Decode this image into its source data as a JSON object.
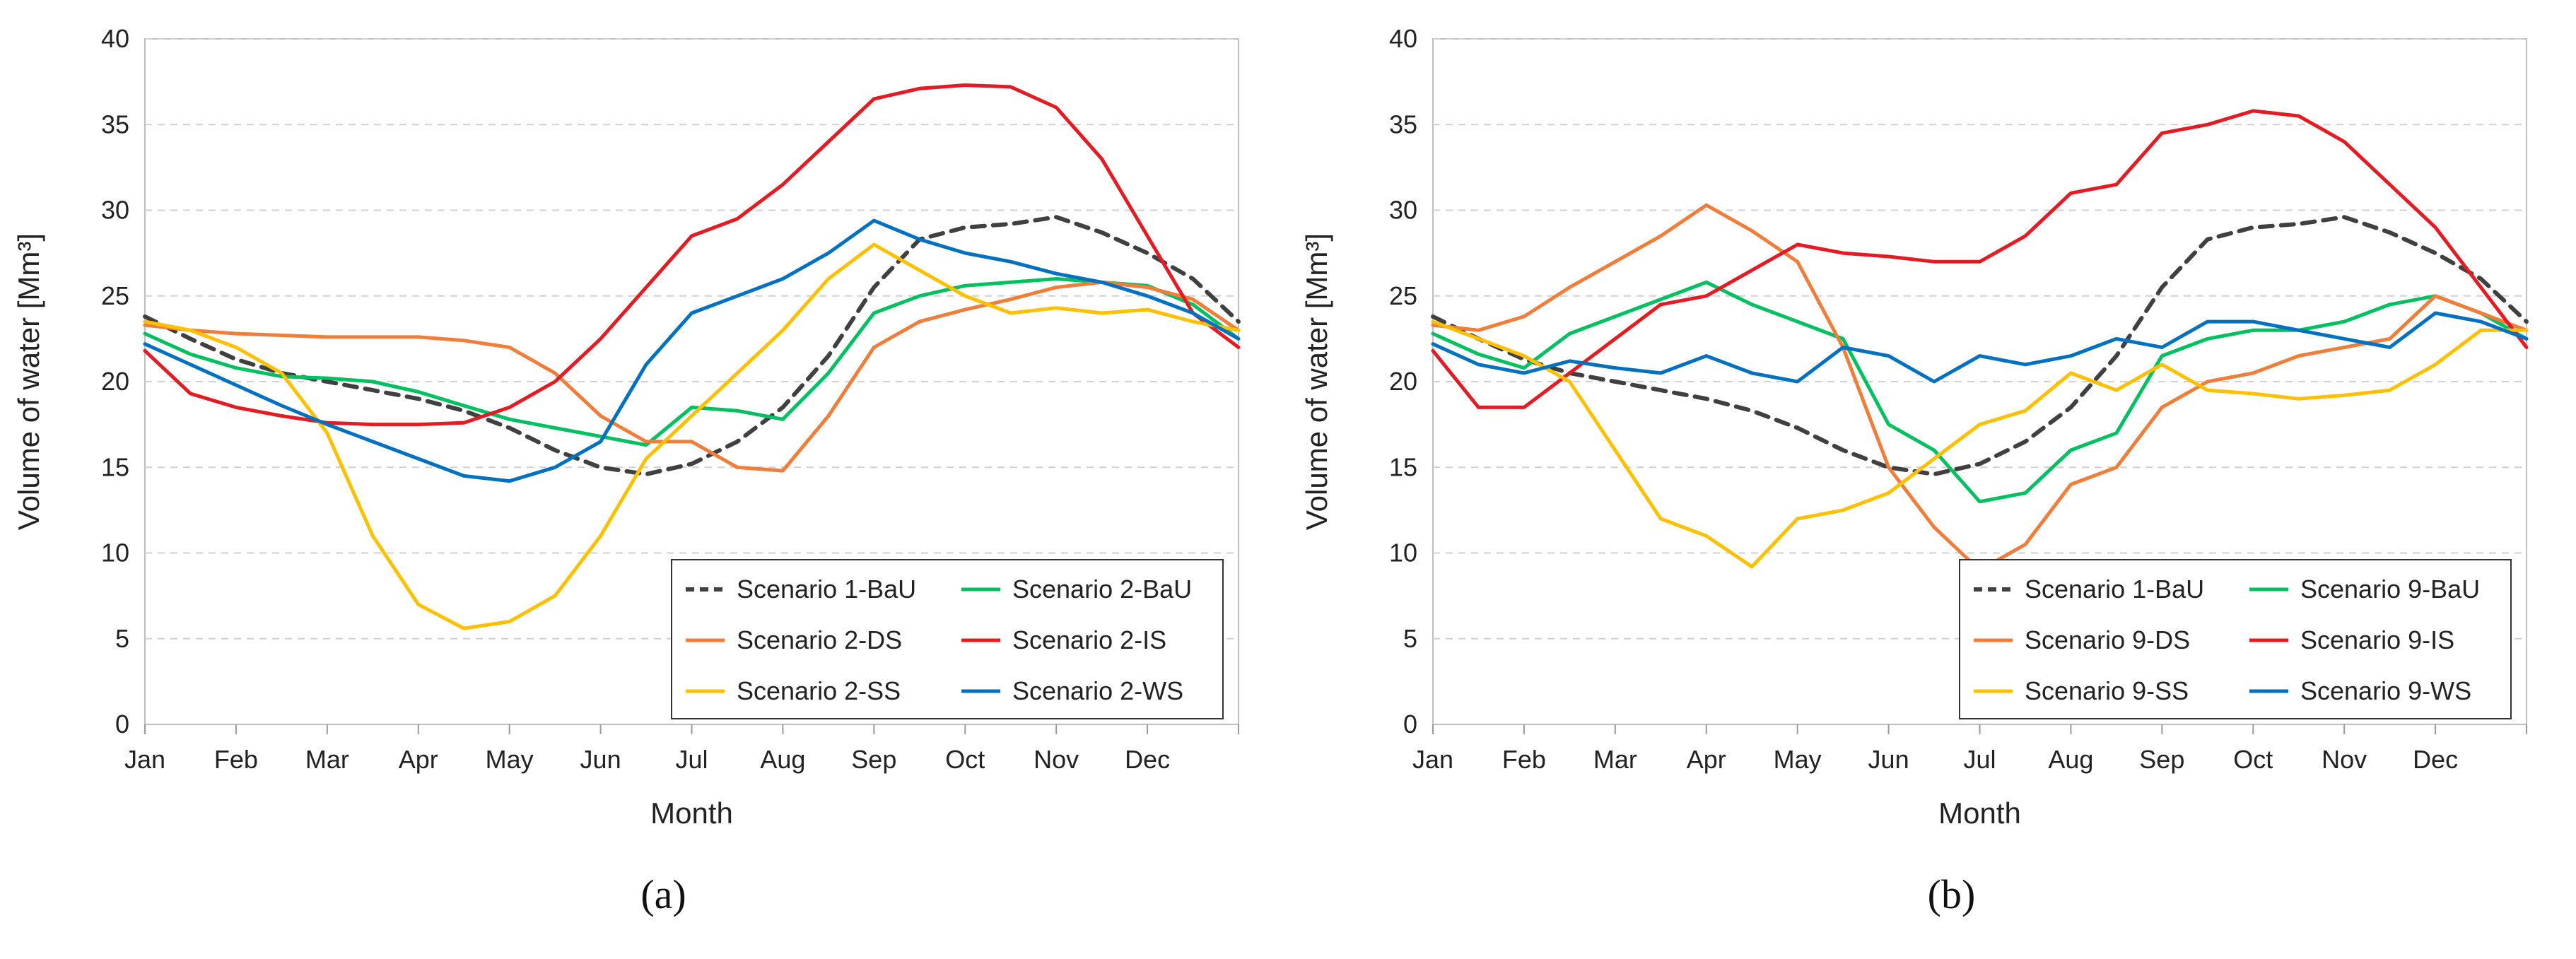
{
  "chart_data": [
    {
      "type": "line",
      "caption_letter": "a",
      "xlabel": "Month",
      "ylabel": "Volume of water [Mm³]",
      "ylim": [
        0,
        40
      ],
      "yticks": [
        0,
        5,
        10,
        15,
        20,
        25,
        30,
        35,
        40
      ],
      "xlim": [
        0,
        12
      ],
      "months": [
        "Jan",
        "Feb",
        "Mar",
        "Apr",
        "May",
        "Jun",
        "Jul",
        "Aug",
        "Sep",
        "Oct",
        "Nov",
        "Dec"
      ],
      "grid": "horizontal dashed",
      "legend_position": "bottom-right",
      "series": [
        {
          "name": "Scenario 1-BaU",
          "color": "#404040",
          "dash": true,
          "x": [
            0,
            0.5,
            1,
            1.5,
            2,
            2.5,
            3,
            3.5,
            4,
            4.5,
            5,
            5.5,
            6,
            6.5,
            7,
            7.5,
            8,
            8.5,
            9,
            9.5,
            10,
            10.5,
            11,
            11.5,
            12
          ],
          "y": [
            23.8,
            22.5,
            21.3,
            20.5,
            20.0,
            19.5,
            19.0,
            18.3,
            17.3,
            16.0,
            15.0,
            14.6,
            15.2,
            16.5,
            18.5,
            21.5,
            25.5,
            28.3,
            29.0,
            29.2,
            29.6,
            28.7,
            27.5,
            26.0,
            23.5
          ]
        },
        {
          "name": "Scenario 2-BaU",
          "color": "#00c060",
          "dash": false,
          "x": [
            0,
            0.5,
            1,
            1.5,
            2,
            2.5,
            3,
            3.5,
            4,
            4.5,
            5,
            5.5,
            6,
            6.5,
            7,
            7.5,
            8,
            8.5,
            9,
            9.5,
            10,
            10.5,
            11,
            11.5,
            12
          ],
          "y": [
            22.8,
            21.6,
            20.8,
            20.3,
            20.2,
            20.0,
            19.4,
            18.6,
            17.8,
            17.3,
            16.8,
            16.3,
            18.5,
            18.3,
            17.8,
            20.5,
            24.0,
            25.0,
            25.6,
            25.8,
            26.0,
            25.8,
            25.6,
            24.5,
            22.5
          ]
        },
        {
          "name": "Scenario 2-DS",
          "color": "#f07d3a",
          "dash": false,
          "x": [
            0,
            0.5,
            1,
            1.5,
            2,
            2.5,
            3,
            3.5,
            4,
            4.5,
            5,
            5.5,
            6,
            6.5,
            7,
            7.5,
            8,
            8.5,
            9,
            9.5,
            10,
            10.5,
            11,
            11.5,
            12
          ],
          "y": [
            23.3,
            23.0,
            22.8,
            22.7,
            22.6,
            22.6,
            22.6,
            22.4,
            22.0,
            20.5,
            18.0,
            16.5,
            16.5,
            15.0,
            14.8,
            18.0,
            22.0,
            23.5,
            24.2,
            24.8,
            25.5,
            25.8,
            25.5,
            24.8,
            23.0
          ]
        },
        {
          "name": "Scenario 2-IS",
          "color": "#e41b23",
          "dash": false,
          "x": [
            0,
            0.5,
            1,
            1.5,
            2,
            2.5,
            3,
            3.5,
            4,
            4.5,
            5,
            5.5,
            6,
            6.5,
            7,
            7.5,
            8,
            8.5,
            9,
            9.5,
            10,
            10.5,
            11,
            11.5,
            12
          ],
          "y": [
            21.8,
            19.3,
            18.5,
            18.0,
            17.6,
            17.5,
            17.5,
            17.6,
            18.5,
            20.0,
            22.5,
            25.5,
            28.5,
            29.5,
            31.5,
            34.0,
            36.5,
            37.1,
            37.3,
            37.2,
            36.0,
            33.0,
            28.5,
            24.0,
            22.0
          ]
        },
        {
          "name": "Scenario 2-SS",
          "color": "#ffc000",
          "dash": false,
          "x": [
            0,
            0.5,
            1,
            1.5,
            2,
            2.5,
            3,
            3.5,
            4,
            4.5,
            5,
            5.5,
            6,
            6.5,
            7,
            7.5,
            8,
            8.5,
            9,
            9.5,
            10,
            10.5,
            11,
            11.5,
            12
          ],
          "y": [
            23.5,
            23.0,
            22.0,
            20.5,
            17.0,
            11.0,
            7.0,
            5.6,
            6.0,
            7.5,
            11.0,
            15.5,
            18.0,
            20.5,
            23.0,
            26.0,
            28.0,
            26.5,
            25.0,
            24.0,
            24.3,
            24.0,
            24.2,
            23.5,
            23.0
          ]
        },
        {
          "name": "Scenario 2-WS",
          "color": "#0070c0",
          "dash": false,
          "x": [
            0,
            0.5,
            1,
            1.5,
            2,
            2.5,
            3,
            3.5,
            4,
            4.5,
            5,
            5.5,
            6,
            6.5,
            7,
            7.5,
            8,
            8.5,
            9,
            9.5,
            10,
            10.5,
            11,
            11.5,
            12
          ],
          "y": [
            22.2,
            21.0,
            19.8,
            18.6,
            17.5,
            16.5,
            15.5,
            14.5,
            14.2,
            15.0,
            16.5,
            21.0,
            24.0,
            25.0,
            26.0,
            27.5,
            29.4,
            28.3,
            27.5,
            27.0,
            26.3,
            25.8,
            25.0,
            24.0,
            22.5
          ]
        }
      ],
      "legend_entries": [
        "Scenario 1-BaU",
        "Scenario 2-BaU",
        "Scenario 2-DS",
        "Scenario 2-IS",
        "Scenario 2-SS",
        "Scenario 2-WS"
      ]
    },
    {
      "type": "line",
      "caption_letter": "b",
      "xlabel": "Month",
      "ylabel": "Volume of water [Mm³]",
      "ylim": [
        0,
        40
      ],
      "yticks": [
        0,
        5,
        10,
        15,
        20,
        25,
        30,
        35,
        40
      ],
      "xlim": [
        0,
        12
      ],
      "months": [
        "Jan",
        "Feb",
        "Mar",
        "Apr",
        "May",
        "Jun",
        "Jul",
        "Aug",
        "Sep",
        "Oct",
        "Nov",
        "Dec"
      ],
      "grid": "horizontal dashed",
      "legend_position": "bottom-right",
      "series": [
        {
          "name": "Scenario 1-BaU",
          "color": "#404040",
          "dash": true,
          "x": [
            0,
            0.5,
            1,
            1.5,
            2,
            2.5,
            3,
            3.5,
            4,
            4.5,
            5,
            5.5,
            6,
            6.5,
            7,
            7.5,
            8,
            8.5,
            9,
            9.5,
            10,
            10.5,
            11,
            11.5,
            12
          ],
          "y": [
            23.8,
            22.5,
            21.3,
            20.5,
            20.0,
            19.5,
            19.0,
            18.3,
            17.3,
            16.0,
            15.0,
            14.6,
            15.2,
            16.5,
            18.5,
            21.5,
            25.5,
            28.3,
            29.0,
            29.2,
            29.6,
            28.7,
            27.5,
            26.0,
            23.5
          ]
        },
        {
          "name": "Scenario 9-BaU",
          "color": "#00c060",
          "dash": false,
          "x": [
            0,
            0.5,
            1,
            1.5,
            2,
            2.5,
            3,
            3.5,
            4,
            4.5,
            5,
            5.5,
            6,
            6.5,
            7,
            7.5,
            8,
            8.5,
            9,
            9.5,
            10,
            10.5,
            11,
            11.5,
            12
          ],
          "y": [
            22.8,
            21.6,
            20.8,
            22.8,
            23.8,
            24.8,
            25.8,
            24.5,
            23.5,
            22.5,
            17.5,
            16.0,
            13.0,
            13.5,
            16.0,
            17.0,
            21.5,
            22.5,
            23.0,
            23.0,
            23.5,
            24.5,
            25.0,
            24.0,
            22.5
          ]
        },
        {
          "name": "Scenario 9-DS",
          "color": "#f07d3a",
          "dash": false,
          "x": [
            0,
            0.5,
            1,
            1.5,
            2,
            2.5,
            3,
            3.5,
            4,
            4.5,
            5,
            5.5,
            6,
            6.5,
            7,
            7.5,
            8,
            8.5,
            9,
            9.5,
            10,
            10.5,
            11,
            11.5,
            12
          ],
          "y": [
            23.3,
            23.0,
            23.8,
            25.5,
            27.0,
            28.5,
            30.3,
            28.8,
            27.0,
            22.0,
            15.0,
            11.5,
            9.0,
            10.5,
            14.0,
            15.0,
            18.5,
            20.0,
            20.5,
            21.5,
            22.0,
            22.5,
            25.0,
            24.0,
            23.0
          ]
        },
        {
          "name": "Scenario 9-IS",
          "color": "#e41b23",
          "dash": false,
          "x": [
            0,
            0.5,
            1,
            1.5,
            2,
            2.5,
            3,
            3.5,
            4,
            4.5,
            5,
            5.5,
            6,
            6.5,
            7,
            7.5,
            8,
            8.5,
            9,
            9.5,
            10,
            10.5,
            11,
            11.5,
            12
          ],
          "y": [
            21.8,
            18.5,
            18.5,
            20.5,
            22.5,
            24.5,
            25.0,
            26.5,
            28.0,
            27.5,
            27.3,
            27.0,
            27.0,
            28.5,
            31.0,
            31.5,
            34.5,
            35.0,
            35.8,
            35.5,
            34.0,
            31.5,
            29.0,
            25.5,
            22.0
          ]
        },
        {
          "name": "Scenario 9-SS",
          "color": "#ffc000",
          "dash": false,
          "x": [
            0,
            0.5,
            1,
            1.5,
            2,
            2.5,
            3,
            3.5,
            4,
            4.5,
            5,
            5.5,
            6,
            6.5,
            7,
            7.5,
            8,
            8.5,
            9,
            9.5,
            10,
            10.5,
            11,
            11.5,
            12
          ],
          "y": [
            23.5,
            22.5,
            21.5,
            20.0,
            16.0,
            12.0,
            11.0,
            9.2,
            12.0,
            12.5,
            13.5,
            15.5,
            17.5,
            18.3,
            20.5,
            19.5,
            21.0,
            19.5,
            19.3,
            19.0,
            19.2,
            19.5,
            21.0,
            23.0,
            23.0
          ]
        },
        {
          "name": "Scenario 9-WS",
          "color": "#0070c0",
          "dash": false,
          "x": [
            0,
            0.5,
            1,
            1.5,
            2,
            2.5,
            3,
            3.5,
            4,
            4.5,
            5,
            5.5,
            6,
            6.5,
            7,
            7.5,
            8,
            8.5,
            9,
            9.5,
            10,
            10.5,
            11,
            11.5,
            12
          ],
          "y": [
            22.2,
            21.0,
            20.5,
            21.2,
            20.8,
            20.5,
            21.5,
            20.5,
            20.0,
            22.0,
            21.5,
            20.0,
            21.5,
            21.0,
            21.5,
            22.5,
            22.0,
            23.5,
            23.5,
            23.0,
            22.5,
            22.0,
            24.0,
            23.5,
            22.5
          ]
        }
      ],
      "legend_entries": [
        "Scenario 1-BaU",
        "Scenario 9-BaU",
        "Scenario 9-DS",
        "Scenario 9-IS",
        "Scenario 9-SS",
        "Scenario 9-WS"
      ]
    }
  ],
  "captions": {
    "a": "(a)",
    "b": "(b)"
  }
}
